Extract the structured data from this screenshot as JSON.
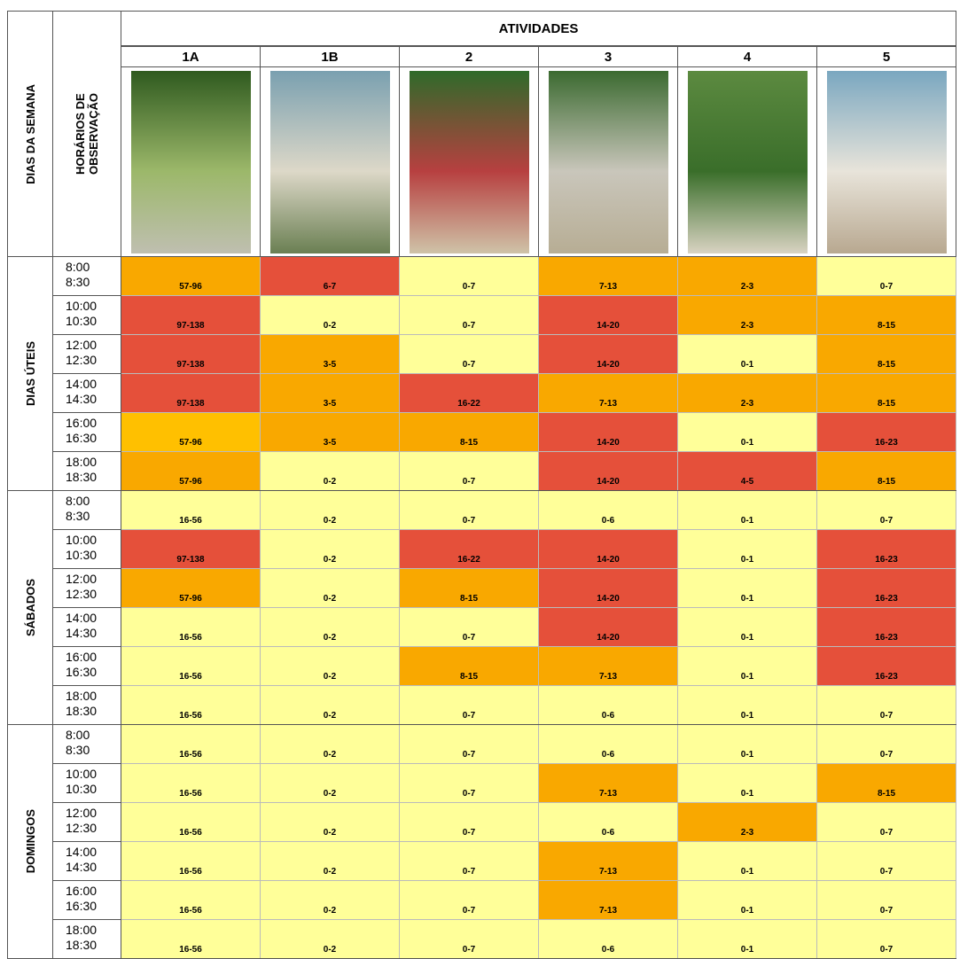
{
  "header": {
    "group_label": "DIAS DA SEMANA",
    "time_label": "HORÁRIOS DE OBSERVAÇÃO",
    "activities_title": "ATIVIDADES",
    "activities": [
      "1A",
      "1B",
      "2",
      "3",
      "4",
      "5"
    ]
  },
  "table": {
    "groups": [
      {
        "name": "DIAS ÚTEIS",
        "rows": [
          {
            "start": "8:00",
            "end": "8:30",
            "cells": [
              {
                "text": "57-96",
                "color": "#f9a800"
              },
              {
                "text": "6-7",
                "color": "#e5503a"
              },
              {
                "text": "0-7",
                "color": "#ffff99"
              },
              {
                "text": "7-13",
                "color": "#f9a800"
              },
              {
                "text": "2-3",
                "color": "#f9a800"
              },
              {
                "text": "0-7",
                "color": "#ffff99"
              }
            ]
          },
          {
            "start": "10:00",
            "end": "10:30",
            "cells": [
              {
                "text": "97-138",
                "color": "#e5503a"
              },
              {
                "text": "0-2",
                "color": "#ffff99"
              },
              {
                "text": "0-7",
                "color": "#ffff99"
              },
              {
                "text": "14-20",
                "color": "#e5503a"
              },
              {
                "text": "2-3",
                "color": "#f9a800"
              },
              {
                "text": "8-15",
                "color": "#f9a800"
              }
            ]
          },
          {
            "start": "12:00",
            "end": "12:30",
            "cells": [
              {
                "text": "97-138",
                "color": "#e5503a"
              },
              {
                "text": "3-5",
                "color": "#f9a800"
              },
              {
                "text": "0-7",
                "color": "#ffff99"
              },
              {
                "text": "14-20",
                "color": "#e5503a"
              },
              {
                "text": "0-1",
                "color": "#ffff99"
              },
              {
                "text": "8-15",
                "color": "#f9a800"
              }
            ]
          },
          {
            "start": "14:00",
            "end": "14:30",
            "cells": [
              {
                "text": "97-138",
                "color": "#e5503a"
              },
              {
                "text": "3-5",
                "color": "#f9a800"
              },
              {
                "text": "16-22",
                "color": "#e5503a"
              },
              {
                "text": "7-13",
                "color": "#f9a800"
              },
              {
                "text": "2-3",
                "color": "#f9a800"
              },
              {
                "text": "8-15",
                "color": "#f9a800"
              }
            ]
          },
          {
            "start": "16:00",
            "end": "16:30",
            "cells": [
              {
                "text": "57-96",
                "color": "#ffc000"
              },
              {
                "text": "3-5",
                "color": "#f9a800"
              },
              {
                "text": "8-15",
                "color": "#f9a800"
              },
              {
                "text": "14-20",
                "color": "#e5503a"
              },
              {
                "text": "0-1",
                "color": "#ffff99"
              },
              {
                "text": "16-23",
                "color": "#e5503a"
              }
            ]
          },
          {
            "start": "18:00",
            "end": "18:30",
            "cells": [
              {
                "text": "57-96",
                "color": "#f9a800"
              },
              {
                "text": "0-2",
                "color": "#ffff99"
              },
              {
                "text": "0-7",
                "color": "#ffff99"
              },
              {
                "text": "14-20",
                "color": "#e5503a"
              },
              {
                "text": "4-5",
                "color": "#e5503a"
              },
              {
                "text": "8-15",
                "color": "#f9a800"
              }
            ]
          }
        ]
      },
      {
        "name": "SÁBADOS",
        "rows": [
          {
            "start": "8:00",
            "end": "8:30",
            "cells": [
              {
                "text": "16-56",
                "color": "#ffff99"
              },
              {
                "text": "0-2",
                "color": "#ffff99"
              },
              {
                "text": "0-7",
                "color": "#ffff99"
              },
              {
                "text": "0-6",
                "color": "#ffff99"
              },
              {
                "text": "0-1",
                "color": "#ffff99"
              },
              {
                "text": "0-7",
                "color": "#ffff99"
              }
            ]
          },
          {
            "start": "10:00",
            "end": "10:30",
            "cells": [
              {
                "text": "97-138",
                "color": "#e5503a"
              },
              {
                "text": "0-2",
                "color": "#ffff99"
              },
              {
                "text": "16-22",
                "color": "#e5503a"
              },
              {
                "text": "14-20",
                "color": "#e5503a"
              },
              {
                "text": "0-1",
                "color": "#ffff99"
              },
              {
                "text": "16-23",
                "color": "#e5503a"
              }
            ]
          },
          {
            "start": "12:00",
            "end": "12:30",
            "cells": [
              {
                "text": "57-96",
                "color": "#f9a800"
              },
              {
                "text": "0-2",
                "color": "#ffff99"
              },
              {
                "text": "8-15",
                "color": "#f9a800"
              },
              {
                "text": "14-20",
                "color": "#e5503a"
              },
              {
                "text": "0-1",
                "color": "#ffff99"
              },
              {
                "text": "16-23",
                "color": "#e5503a"
              }
            ]
          },
          {
            "start": "14:00",
            "end": "14:30",
            "cells": [
              {
                "text": "16-56",
                "color": "#ffff99"
              },
              {
                "text": "0-2",
                "color": "#ffff99"
              },
              {
                "text": "0-7",
                "color": "#ffff99"
              },
              {
                "text": "14-20",
                "color": "#e5503a"
              },
              {
                "text": "0-1",
                "color": "#ffff99"
              },
              {
                "text": "16-23",
                "color": "#e5503a"
              }
            ]
          },
          {
            "start": "16:00",
            "end": "16:30",
            "cells": [
              {
                "text": "16-56",
                "color": "#ffff99"
              },
              {
                "text": "0-2",
                "color": "#ffff99"
              },
              {
                "text": "8-15",
                "color": "#f9a800"
              },
              {
                "text": "7-13",
                "color": "#f9a800"
              },
              {
                "text": "0-1",
                "color": "#ffff99"
              },
              {
                "text": "16-23",
                "color": "#e5503a"
              }
            ]
          },
          {
            "start": "18:00",
            "end": "18:30",
            "cells": [
              {
                "text": "16-56",
                "color": "#ffff99"
              },
              {
                "text": "0-2",
                "color": "#ffff99"
              },
              {
                "text": "0-7",
                "color": "#ffff99"
              },
              {
                "text": "0-6",
                "color": "#ffff99"
              },
              {
                "text": "0-1",
                "color": "#ffff99"
              },
              {
                "text": "0-7",
                "color": "#ffff99"
              }
            ]
          }
        ]
      },
      {
        "name": "DOMINGOS",
        "rows": [
          {
            "start": "8:00",
            "end": "8:30",
            "cells": [
              {
                "text": "16-56",
                "color": "#ffff99"
              },
              {
                "text": "0-2",
                "color": "#ffff99"
              },
              {
                "text": "0-7",
                "color": "#ffff99"
              },
              {
                "text": "0-6",
                "color": "#ffff99"
              },
              {
                "text": "0-1",
                "color": "#ffff99"
              },
              {
                "text": "0-7",
                "color": "#ffff99"
              }
            ]
          },
          {
            "start": "10:00",
            "end": "10:30",
            "cells": [
              {
                "text": "16-56",
                "color": "#ffff99"
              },
              {
                "text": "0-2",
                "color": "#ffff99"
              },
              {
                "text": "0-7",
                "color": "#ffff99"
              },
              {
                "text": "7-13",
                "color": "#f9a800"
              },
              {
                "text": "0-1",
                "color": "#ffff99"
              },
              {
                "text": "8-15",
                "color": "#f9a800"
              }
            ]
          },
          {
            "start": "12:00",
            "end": "12:30",
            "cells": [
              {
                "text": "16-56",
                "color": "#ffff99"
              },
              {
                "text": "0-2",
                "color": "#ffff99"
              },
              {
                "text": "0-7",
                "color": "#ffff99"
              },
              {
                "text": "0-6",
                "color": "#ffff99"
              },
              {
                "text": "2-3",
                "color": "#f9a800"
              },
              {
                "text": "0-7",
                "color": "#ffff99"
              }
            ]
          },
          {
            "start": "14:00",
            "end": "14:30",
            "cells": [
              {
                "text": "16-56",
                "color": "#ffff99"
              },
              {
                "text": "0-2",
                "color": "#ffff99"
              },
              {
                "text": "0-7",
                "color": "#ffff99"
              },
              {
                "text": "7-13",
                "color": "#f9a800"
              },
              {
                "text": "0-1",
                "color": "#ffff99"
              },
              {
                "text": "0-7",
                "color": "#ffff99"
              }
            ]
          },
          {
            "start": "16:00",
            "end": "16:30",
            "cells": [
              {
                "text": "16-56",
                "color": "#ffff99"
              },
              {
                "text": "0-2",
                "color": "#ffff99"
              },
              {
                "text": "0-7",
                "color": "#ffff99"
              },
              {
                "text": "7-13",
                "color": "#f9a800"
              },
              {
                "text": "0-1",
                "color": "#ffff99"
              },
              {
                "text": "0-7",
                "color": "#ffff99"
              }
            ]
          },
          {
            "start": "18:00",
            "end": "18:30",
            "cells": [
              {
                "text": "16-56",
                "color": "#ffff99"
              },
              {
                "text": "0-2",
                "color": "#ffff99"
              },
              {
                "text": "0-7",
                "color": "#ffff99"
              },
              {
                "text": "0-6",
                "color": "#ffff99"
              },
              {
                "text": "0-1",
                "color": "#ffff99"
              },
              {
                "text": "0-7",
                "color": "#ffff99"
              }
            ]
          }
        ]
      }
    ]
  }
}
